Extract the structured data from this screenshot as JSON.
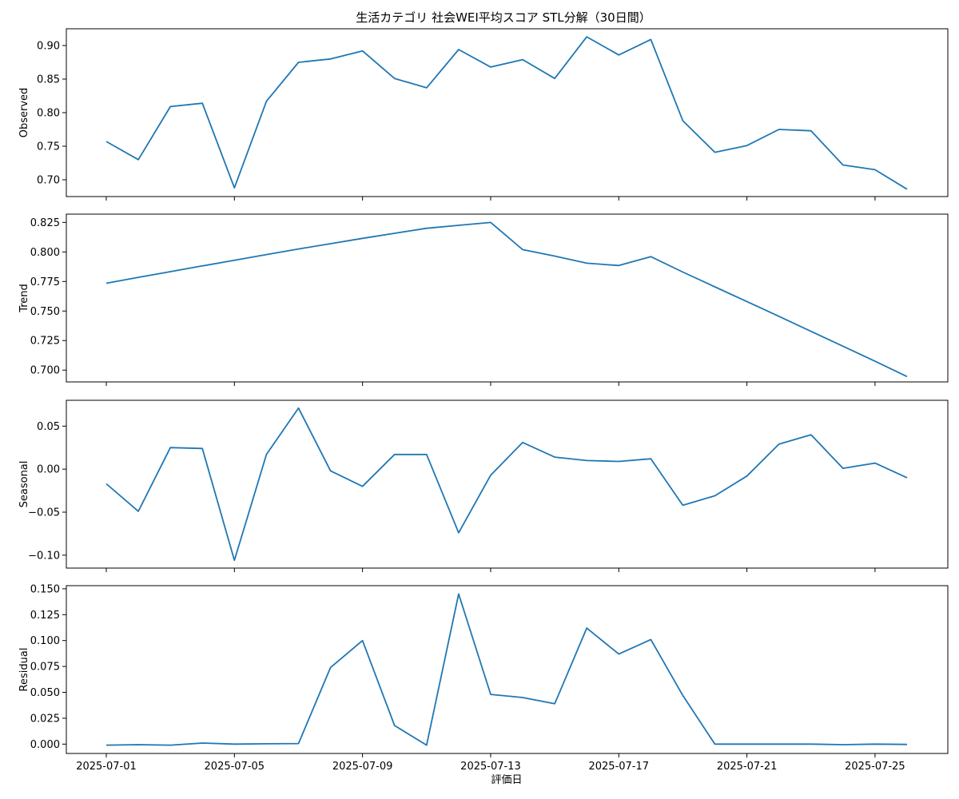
{
  "chart_data": {
    "type": "line",
    "title": "生活カテゴリ 社会WEI平均スコア STL分解（30日間）",
    "xlabel": "評価日",
    "x": [
      "2025-07-01",
      "2025-07-02",
      "2025-07-03",
      "2025-07-04",
      "2025-07-05",
      "2025-07-06",
      "2025-07-07",
      "2025-07-08",
      "2025-07-09",
      "2025-07-10",
      "2025-07-11",
      "2025-07-12",
      "2025-07-13",
      "2025-07-14",
      "2025-07-15",
      "2025-07-16",
      "2025-07-17",
      "2025-07-18",
      "2025-07-19",
      "2025-07-20",
      "2025-07-21",
      "2025-07-22",
      "2025-07-23",
      "2025-07-24",
      "2025-07-25",
      "2025-07-26"
    ],
    "x_ticks": [
      "2025-07-01",
      "2025-07-05",
      "2025-07-09",
      "2025-07-13",
      "2025-07-17",
      "2025-07-21",
      "2025-07-25"
    ],
    "grid": false,
    "panels": [
      {
        "name": "Observed",
        "ylabel": "Observed",
        "ylim": [
          0.675,
          0.925
        ],
        "yticks": [
          "0.70",
          "0.75",
          "0.80",
          "0.85",
          "0.90"
        ],
        "values": [
          0.757,
          0.73,
          0.809,
          0.814,
          0.688,
          0.817,
          0.875,
          0.88,
          0.892,
          0.851,
          0.837,
          0.894,
          0.868,
          0.879,
          0.851,
          0.913,
          0.886,
          0.909,
          0.788,
          0.741,
          0.751,
          0.775,
          0.773,
          0.722,
          0.715,
          0.686
        ]
      },
      {
        "name": "Trend",
        "ylabel": "Trend",
        "ylim": [
          0.69,
          0.832
        ],
        "yticks": [
          "0.700",
          "0.725",
          "0.750",
          "0.775",
          "0.800",
          "0.825"
        ],
        "values": [
          0.7735,
          0.7785,
          0.7833,
          0.7882,
          0.793,
          0.7978,
          0.8025,
          0.807,
          0.8115,
          0.8158,
          0.82,
          0.8225,
          0.825,
          0.802,
          0.7965,
          0.7905,
          0.7885,
          0.796,
          0.783,
          0.7705,
          0.758,
          0.7455,
          0.7328,
          0.7202,
          0.7075,
          0.6945
        ]
      },
      {
        "name": "Seasonal",
        "ylabel": "Seasonal",
        "ylim": [
          -0.115,
          0.08
        ],
        "yticks": [
          "−0.10",
          "−0.05",
          "0.00",
          "0.05"
        ],
        "values": [
          -0.017,
          -0.049,
          0.025,
          0.024,
          -0.106,
          0.017,
          0.071,
          -0.002,
          -0.02,
          0.017,
          0.017,
          -0.074,
          -0.007,
          0.031,
          0.014,
          0.01,
          0.009,
          0.012,
          -0.042,
          -0.031,
          -0.008,
          0.029,
          0.04,
          0.001,
          0.007,
          -0.01
        ]
      },
      {
        "name": "Residual",
        "ylabel": "Residual",
        "ylim": [
          -0.009,
          0.153
        ],
        "yticks": [
          "0.000",
          "0.025",
          "0.050",
          "0.075",
          "0.100",
          "0.125",
          "0.150"
        ],
        "values": [
          -0.001,
          -0.0005,
          -0.001,
          0.001,
          0.0,
          0.0003,
          0.0006,
          0.074,
          0.1,
          0.018,
          -0.001,
          0.145,
          0.048,
          0.045,
          0.039,
          0.112,
          0.087,
          0.101,
          0.047,
          0.0,
          0.0,
          0.0,
          0.0,
          -0.0005,
          0.0,
          -0.0003
        ]
      }
    ]
  }
}
